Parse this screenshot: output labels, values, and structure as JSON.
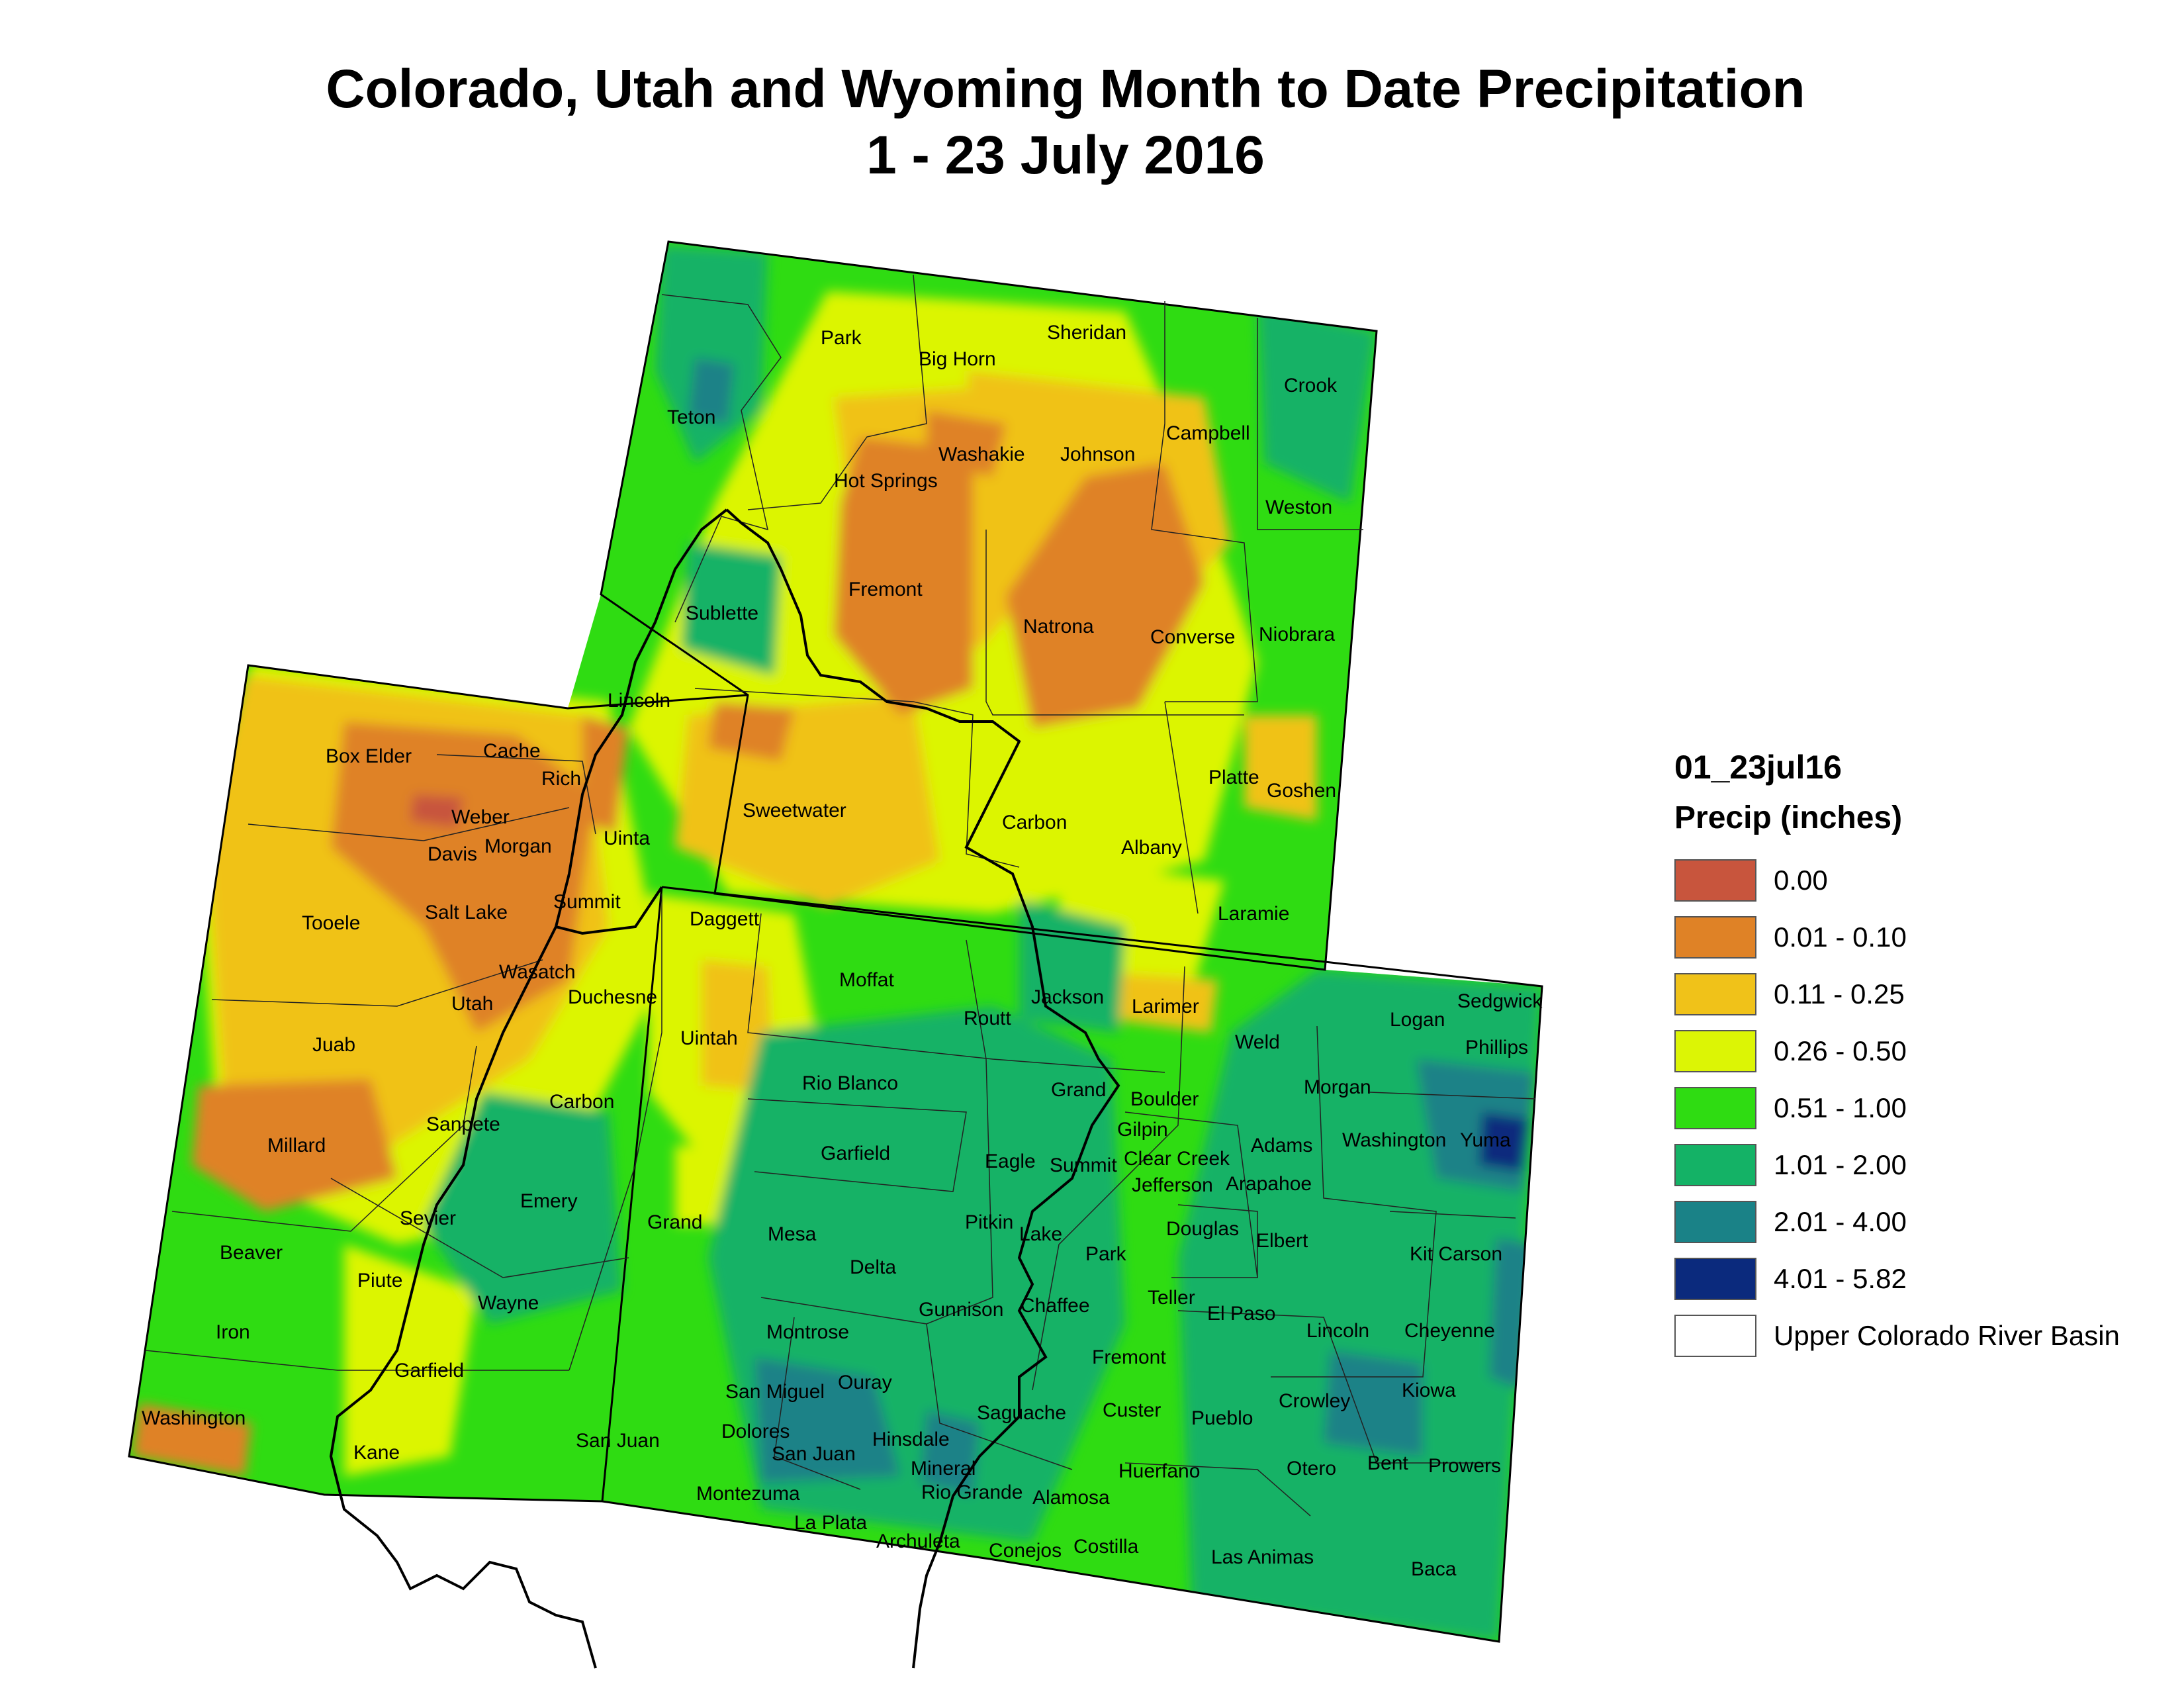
{
  "title": {
    "line1": "Colorado, Utah and Wyoming Month to Date Precipitation",
    "line2": "1 - 23 July 2016"
  },
  "legend": {
    "layer": "01_23jul16",
    "title": "Precip (inches)",
    "items": [
      {
        "label": "0.00",
        "color": "#c8553d"
      },
      {
        "label": "0.01 - 0.10",
        "color": "#df8226"
      },
      {
        "label": "0.11 - 0.25",
        "color": "#f0c219"
      },
      {
        "label": "0.26 - 0.50",
        "color": "#dcf505"
      },
      {
        "label": "0.51 - 1.00",
        "color": "#2fdc12"
      },
      {
        "label": "1.01 - 2.00",
        "color": "#14b266"
      },
      {
        "label": "2.01 - 4.00",
        "color": "#1a8287"
      },
      {
        "label": "4.01 - 5.82",
        "color": "#0b2a7d"
      },
      {
        "label": "Upper Colorado River Basin",
        "color": "#ffffff"
      }
    ]
  },
  "counties": {
    "wyoming": [
      "Park",
      "Big Horn",
      "Sheridan",
      "Crook",
      "Teton",
      "Washakie",
      "Johnson",
      "Campbell",
      "Hot Springs",
      "Weston",
      "Fremont",
      "Natrona",
      "Sublette",
      "Converse",
      "Niobrara",
      "Lincoln",
      "Sweetwater",
      "Carbon",
      "Albany",
      "Platte",
      "Goshen",
      "Uinta",
      "Laramie"
    ],
    "utah": [
      "Box Elder",
      "Cache",
      "Rich",
      "Weber",
      "Davis",
      "Morgan",
      "Tooele",
      "Salt Lake",
      "Summit",
      "Daggett",
      "Wasatch",
      "Utah",
      "Duchesne",
      "Uintah",
      "Juab",
      "Carbon",
      "Millard",
      "Sanpete",
      "Emery",
      "Grand",
      "Sevier",
      "Beaver",
      "Piute",
      "Wayne",
      "Iron",
      "Garfield",
      "Washington",
      "Kane",
      "San Juan"
    ],
    "colorado": [
      "Moffat",
      "Jackson",
      "Larimer",
      "Logan",
      "Sedgwick",
      "Phillips",
      "Routt",
      "Weld",
      "Rio Blanco",
      "Grand",
      "Boulder",
      "Morgan",
      "Gilpin",
      "Garfield",
      "Eagle",
      "Summit",
      "Clear Creek",
      "Adams",
      "Washington",
      "Yuma",
      "Jefferson",
      "Arapahoe",
      "Mesa",
      "Pitkin",
      "Lake",
      "Douglas",
      "Elbert",
      "Kit Carson",
      "Park",
      "Delta",
      "Teller",
      "Gunnison",
      "Chaffee",
      "El Paso",
      "Lincoln",
      "Cheyenne",
      "Montrose",
      "Fremont",
      "San Miguel",
      "Ouray",
      "Custer",
      "Crowley",
      "Kiowa",
      "Dolores",
      "San Juan",
      "Hinsdale",
      "Saguache",
      "Pueblo",
      "Mineral",
      "Huerfano",
      "Otero",
      "Bent",
      "Prowers",
      "Montezuma",
      "Rio Grande",
      "Alamosa",
      "La Plata",
      "Archuleta",
      "Conejos",
      "Costilla",
      "Las Animas",
      "Baca"
    ]
  }
}
